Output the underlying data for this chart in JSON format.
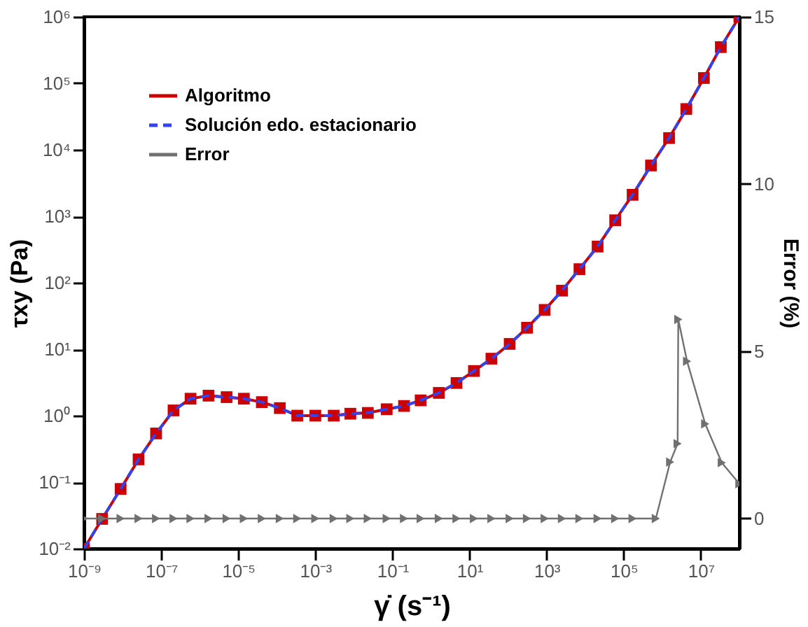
{
  "chart_data": {
    "type": "line",
    "xlabel": "γ̇ (s⁻¹)",
    "ylabel": "τxy (Pa)",
    "y2label": "Error (%)",
    "log": "xy",
    "grid": false,
    "legend": "top left",
    "xlim": [
      1e-09,
      100000000.0
    ],
    "ylim": [
      0.01,
      1000000
    ],
    "y2lim": [
      -0.9,
      15
    ],
    "xticks": [
      {
        "value": 1e-09,
        "label": "10⁻⁹"
      },
      {
        "value": 1e-07,
        "label": "10⁻⁷"
      },
      {
        "value": 1e-05,
        "label": "10⁻⁵"
      },
      {
        "value": 0.001,
        "label": "10⁻³"
      },
      {
        "value": 0.1,
        "label": "10⁻¹"
      },
      {
        "value": 10,
        "label": "10¹"
      },
      {
        "value": 1000,
        "label": "10³"
      },
      {
        "value": 100000,
        "label": "10⁵"
      },
      {
        "value": 10000000,
        "label": "10⁷"
      }
    ],
    "yticks": [
      {
        "value": 0.01,
        "label": "10⁻²"
      },
      {
        "value": 0.1,
        "label": "10⁻¹"
      },
      {
        "value": 1,
        "label": "10⁰"
      },
      {
        "value": 10,
        "label": "10¹"
      },
      {
        "value": 100,
        "label": "10²"
      },
      {
        "value": 1000,
        "label": "10³"
      },
      {
        "value": 10000,
        "label": "10⁴"
      },
      {
        "value": 100000,
        "label": "10⁵"
      },
      {
        "value": 1000000,
        "label": "10⁶"
      }
    ],
    "y2ticks": [
      0,
      5,
      10,
      15
    ],
    "series": [
      {
        "name": "Algoritmo",
        "color": "#cc0000",
        "marker": "square",
        "line_style": "solid",
        "axis": "y",
        "x": [
          1e-09,
          2.95e-09,
          8.9e-09,
          2.6e-08,
          7.4e-08,
          2.1e-07,
          5.8e-07,
          1.7e-06,
          5e-06,
          1.4e-05,
          4.1e-05,
          0.00012,
          0.00034,
          0.001,
          0.003,
          0.0081,
          0.023,
          0.071,
          0.2,
          0.54,
          1.6,
          4.6,
          13,
          37,
          110,
          310,
          890,
          2500,
          7100,
          21000,
          60000,
          170000,
          510000,
          1500000,
          4200000,
          12000000,
          33000000,
          100000000
        ],
        "values": [
          0.01,
          0.028,
          0.079,
          0.22,
          0.54,
          1.2,
          1.8,
          2.0,
          1.9,
          1.8,
          1.6,
          1.3,
          1.0,
          1.0,
          1.0,
          1.07,
          1.1,
          1.25,
          1.4,
          1.7,
          2.2,
          3.1,
          4.7,
          7.2,
          12,
          21,
          39,
          76,
          160,
          350,
          870,
          2100,
          5800,
          15000,
          41000,
          120000,
          350000,
          1000000
        ]
      },
      {
        "name": "Solución edo. estacionario",
        "color": "#3344ee",
        "marker": "none",
        "line_style": "dashed",
        "axis": "y",
        "x": [
          1e-09,
          2.95e-09,
          8.9e-09,
          2.6e-08,
          7.4e-08,
          2.1e-07,
          5.8e-07,
          1.7e-06,
          5e-06,
          1.4e-05,
          4.1e-05,
          0.00012,
          0.00034,
          0.001,
          0.003,
          0.0081,
          0.023,
          0.071,
          0.2,
          0.54,
          1.6,
          4.6,
          13,
          37,
          110,
          310,
          890,
          2500,
          7100,
          21000,
          60000,
          170000,
          510000,
          1500000,
          4200000,
          12000000,
          33000000,
          100000000
        ],
        "values": [
          0.01,
          0.028,
          0.079,
          0.22,
          0.54,
          1.2,
          1.8,
          2.0,
          1.9,
          1.8,
          1.6,
          1.3,
          1.0,
          1.0,
          1.0,
          1.07,
          1.1,
          1.25,
          1.4,
          1.7,
          2.2,
          3.1,
          4.7,
          7.2,
          12,
          21,
          39,
          76,
          160,
          350,
          870,
          2100,
          5800,
          15000,
          41000,
          120000,
          350000,
          1000000
        ]
      },
      {
        "name": "Error",
        "color": "#707070",
        "marker": "triangle",
        "line_style": "solid",
        "axis": "y2",
        "x": [
          1e-09,
          2.95e-09,
          8.9e-09,
          2.6e-08,
          7.4e-08,
          2.1e-07,
          5.8e-07,
          1.7e-06,
          5e-06,
          1.4e-05,
          4.1e-05,
          0.00012,
          0.00034,
          0.001,
          0.003,
          0.0081,
          0.023,
          0.071,
          0.2,
          0.54,
          1.6,
          4.6,
          13,
          37,
          110,
          310,
          890,
          2500,
          7100,
          21000,
          60000,
          170000,
          680000,
          1600000,
          2500000,
          2600000,
          4400000,
          13000000,
          35000000,
          100000000
        ],
        "values": [
          0,
          0,
          0,
          0,
          0,
          0,
          0,
          0,
          0,
          0,
          0,
          0,
          0,
          0,
          0,
          0,
          0,
          0,
          0,
          0,
          0,
          0,
          0,
          0,
          0,
          0,
          0,
          0,
          0,
          0,
          0,
          0,
          0,
          1.69,
          2.24,
          5.95,
          4.7,
          2.83,
          1.67,
          1.04
        ]
      }
    ]
  }
}
